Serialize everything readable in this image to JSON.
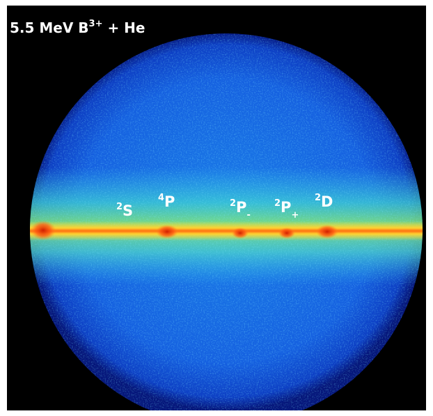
{
  "title": {
    "main": "5.5 MeV B",
    "sup": "3+",
    "rest": " + He"
  },
  "labels": [
    {
      "sup": "2",
      "base": "S"
    },
    {
      "sup": "4",
      "base": "P"
    },
    {
      "sup": "2",
      "base": "P",
      "sub": "-"
    },
    {
      "sup": "2",
      "base": "P",
      "sub": "+"
    },
    {
      "sup": "2",
      "base": "D"
    }
  ]
}
